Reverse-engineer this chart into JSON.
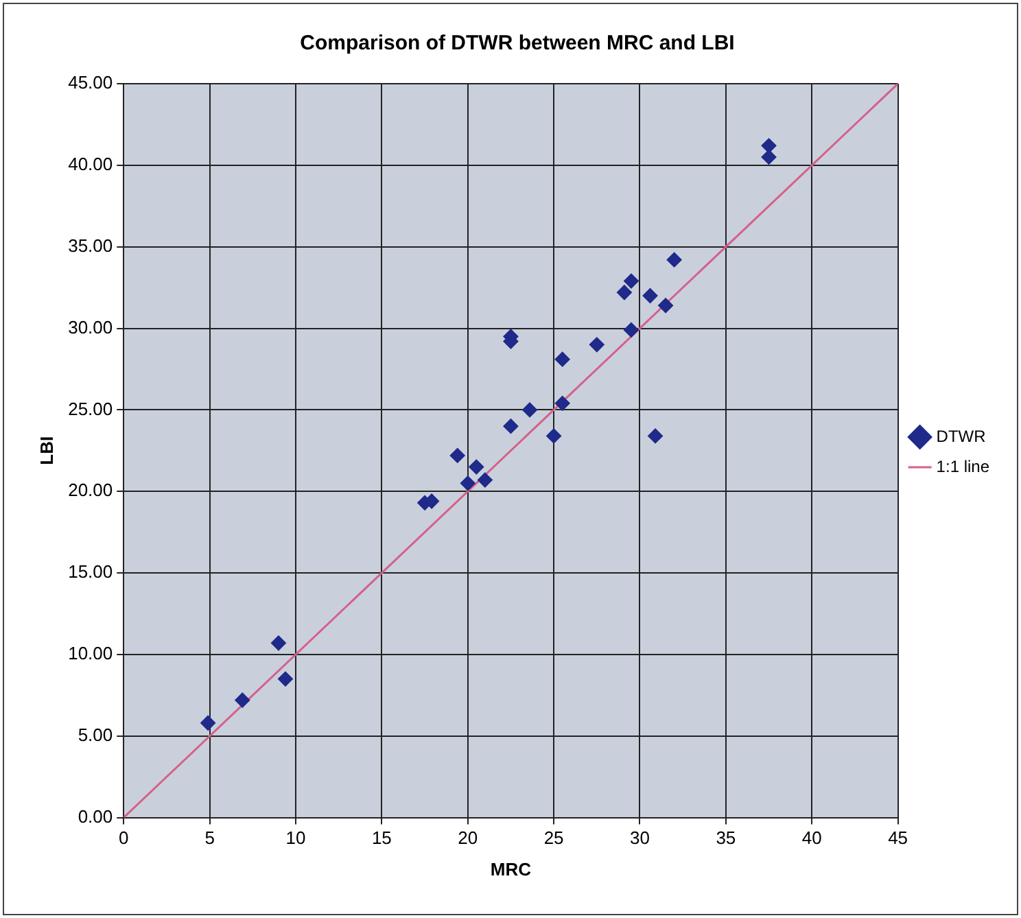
{
  "chart_data": {
    "type": "scatter",
    "title": "Comparison of DTWR between MRC and LBI",
    "xlabel": "MRC",
    "ylabel": "LBI",
    "xlim": [
      0,
      45
    ],
    "xticks": [
      0,
      5,
      10,
      15,
      20,
      25,
      30,
      35,
      40,
      45
    ],
    "ylim": [
      0,
      45
    ],
    "yticks": [
      {
        "value": 0,
        "label": "0.00"
      },
      {
        "value": 5,
        "label": "5.00"
      },
      {
        "value": 10,
        "label": "10.00"
      },
      {
        "value": 15,
        "label": "15.00"
      },
      {
        "value": 20,
        "label": "20.00"
      },
      {
        "value": 25,
        "label": "25.00"
      },
      {
        "value": 30,
        "label": "30.00"
      },
      {
        "value": 35,
        "label": "35.00"
      },
      {
        "value": 40,
        "label": "40.00"
      },
      {
        "value": 45,
        "label": "45.00"
      }
    ],
    "grid": true,
    "legend": "right",
    "series": [
      {
        "name": "DTWR",
        "type": "scatter",
        "marker": "diamond",
        "color": "#1f2a8a",
        "x": [
          37.5,
          37.5,
          32.0,
          29.5,
          29.1,
          30.6,
          31.5,
          29.5,
          22.5,
          22.5,
          27.5,
          25.5,
          25.5,
          23.6,
          22.5,
          25.0,
          30.9,
          19.4,
          20.5,
          20.0,
          21.0,
          17.5,
          17.9,
          9.0,
          9.4,
          6.9,
          4.9
        ],
        "values": [
          41.2,
          40.5,
          34.2,
          32.9,
          32.2,
          32.0,
          31.4,
          29.9,
          29.5,
          29.2,
          29.0,
          28.1,
          25.4,
          25.0,
          24.0,
          23.4,
          23.4,
          22.2,
          21.5,
          20.5,
          20.7,
          19.3,
          19.4,
          10.7,
          8.5,
          7.2,
          5.8
        ]
      },
      {
        "name": "1:1 line",
        "type": "line",
        "marker": "none",
        "color": "#d6608a",
        "x": [
          0,
          45
        ],
        "values": [
          0,
          45
        ]
      }
    ]
  }
}
